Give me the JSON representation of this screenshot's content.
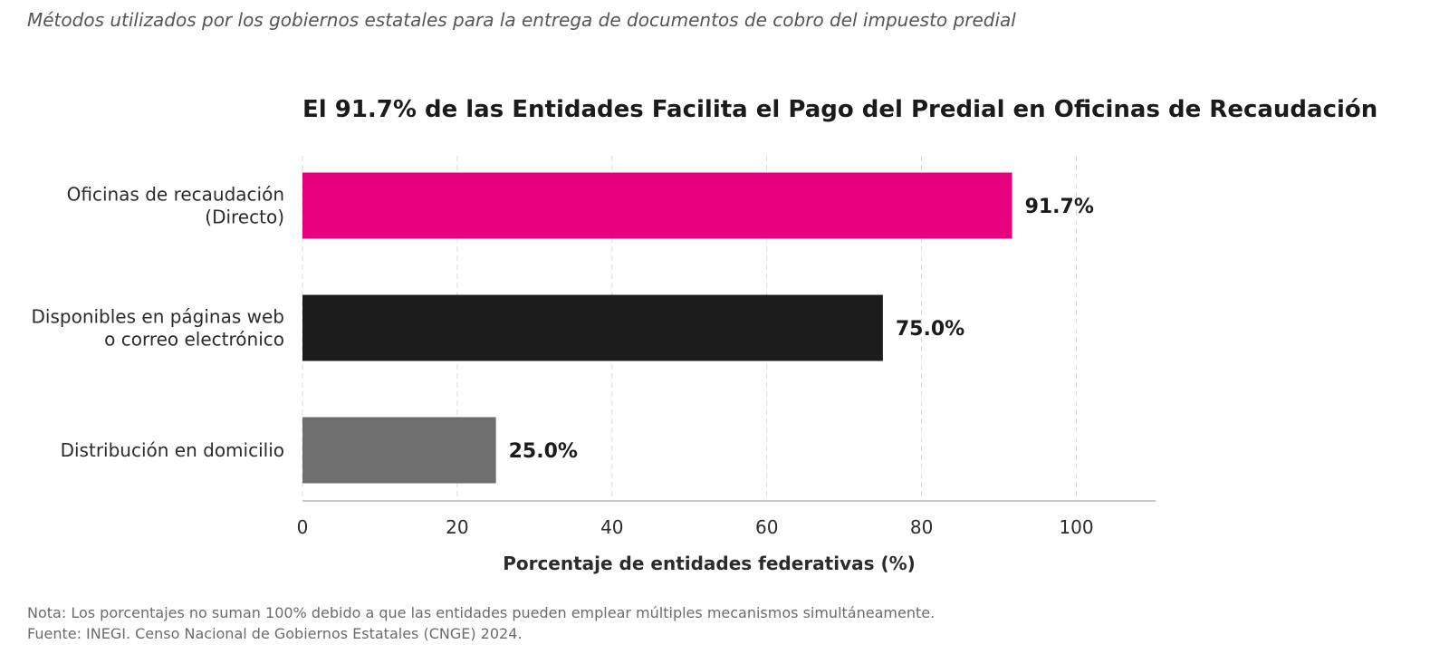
{
  "header": {
    "subtitle": "Métodos utilizados por los gobiernos estatales para la entrega de documentos de cobro del impuesto predial"
  },
  "chart_data": {
    "type": "bar",
    "orientation": "horizontal",
    "title": "El 91.7% de las Entidades Facilita el Pago del Predial en Oficinas de Recaudación",
    "categories": [
      [
        "Oficinas de recaudación",
        "(Directo)"
      ],
      [
        "Disponibles en páginas web",
        "o correo electrónico"
      ],
      [
        "Distribución en domicilio"
      ]
    ],
    "values": [
      91.7,
      75.0,
      25.0
    ],
    "value_labels": [
      "91.7%",
      "75.0%",
      "25.0%"
    ],
    "colors": [
      "#e6007e",
      "#1c1c1c",
      "#6e6e6e"
    ],
    "xlabel": "Porcentaje de entidades federativas (%)",
    "ylabel": "",
    "xlim": [
      0,
      105
    ],
    "xticks": [
      0,
      20,
      40,
      60,
      80,
      100
    ],
    "grid": true,
    "legend": "none"
  },
  "footer": {
    "note": "Nota: Los porcentajes no suman 100% debido a que las entidades pueden emplear múltiples mecanismos simultáneamente.",
    "source": "Fuente: INEGI. Censo Nacional de Gobiernos Estatales (CNGE) 2024."
  }
}
